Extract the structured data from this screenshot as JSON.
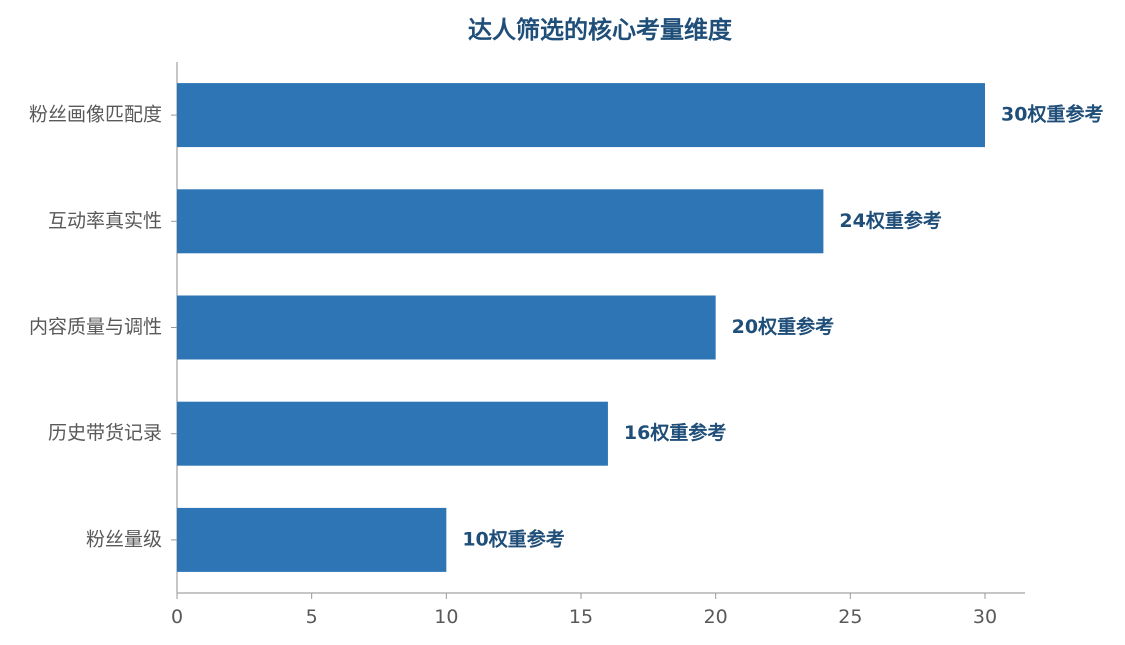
{
  "chart_data": {
    "type": "bar",
    "orientation": "horizontal",
    "title": "达人筛选的核心考量维度",
    "xlabel": "",
    "ylabel": "",
    "categories": [
      "粉丝画像匹配度",
      "互动率真实性",
      "内容质量与调性",
      "历史带货记录",
      "粉丝量级"
    ],
    "values": [
      30,
      24,
      20,
      16,
      10
    ],
    "data_labels": [
      "30权重参考",
      "24权重参考",
      "20权重参考",
      "16权重参考",
      "10权重参考"
    ],
    "xlim": [
      0,
      31.5
    ],
    "xticks": [
      0,
      5,
      10,
      15,
      20,
      25,
      30
    ],
    "grid": false,
    "legend": "none",
    "colors": {
      "bar": "#2e75b6",
      "title": "#1f4e79",
      "data_label": "#1f4e79",
      "axis": "#b3b3b3",
      "tick_label": "#595959"
    }
  }
}
